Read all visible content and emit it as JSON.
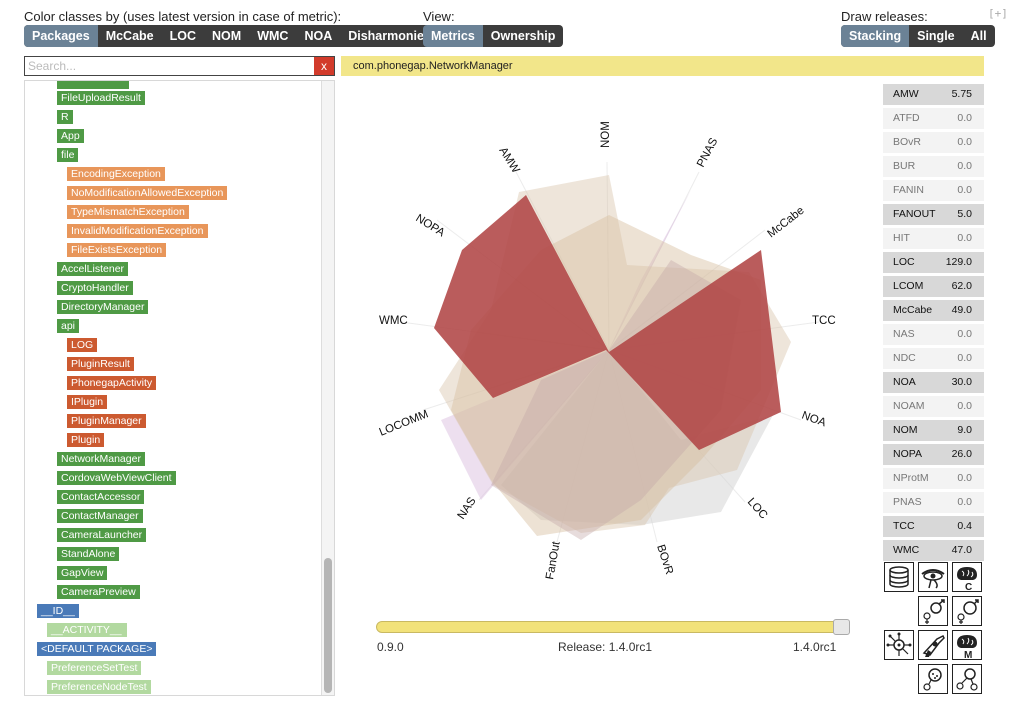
{
  "header": {
    "color_label": "Color classes by (uses latest version in case of metric):",
    "color_buttons": [
      "Packages",
      "McCabe",
      "LOC",
      "NOM",
      "WMC",
      "NOA",
      "Disharmonies"
    ],
    "view_label": "View:",
    "view_buttons": [
      "Metrics",
      "Ownership"
    ],
    "draw_label": "Draw releases:",
    "draw_buttons": [
      "Stacking",
      "Single",
      "All"
    ],
    "expand": "[+]"
  },
  "search": {
    "placeholder": "Search...",
    "clear": "x"
  },
  "tree": [
    {
      "label": "FileUploadResult",
      "color": "g"
    },
    {
      "label": "R",
      "color": "g"
    },
    {
      "label": "App",
      "color": "g"
    },
    {
      "label": "file",
      "color": "g"
    },
    {
      "label": "EncodingException",
      "color": "o"
    },
    {
      "label": "NoModificationAllowedException",
      "color": "o"
    },
    {
      "label": "TypeMismatchException",
      "color": "o"
    },
    {
      "label": "InvalidModificationException",
      "color": "o"
    },
    {
      "label": "FileExistsException",
      "color": "o"
    },
    {
      "label": "AccelListener",
      "color": "g"
    },
    {
      "label": "CryptoHandler",
      "color": "g"
    },
    {
      "label": "DirectoryManager",
      "color": "g"
    },
    {
      "label": "api",
      "color": "g"
    },
    {
      "label": "LOG",
      "color": "r"
    },
    {
      "label": "PluginResult",
      "color": "r"
    },
    {
      "label": "PhonegapActivity",
      "color": "r"
    },
    {
      "label": "IPlugin",
      "color": "r"
    },
    {
      "label": "PluginManager",
      "color": "r"
    },
    {
      "label": "Plugin",
      "color": "r"
    },
    {
      "label": "NetworkManager",
      "color": "g"
    },
    {
      "label": "CordovaWebViewClient",
      "color": "g"
    },
    {
      "label": "ContactAccessor",
      "color": "g"
    },
    {
      "label": "ContactManager",
      "color": "g"
    },
    {
      "label": "CameraLauncher",
      "color": "g"
    },
    {
      "label": "StandAlone",
      "color": "g"
    },
    {
      "label": "GapView",
      "color": "g"
    },
    {
      "label": "CameraPreview",
      "color": "g"
    },
    {
      "label": "__ID__",
      "color": "bl"
    },
    {
      "label": "__ACTIVITY__",
      "color": "lg"
    },
    {
      "label": "<DEFAULT PACKAGE>",
      "color": "bl"
    },
    {
      "label": "PreferenceSetTest",
      "color": "lg"
    },
    {
      "label": "PreferenceNodeTest",
      "color": "lg"
    }
  ],
  "selected_class": "com.phonegap.NetworkManager",
  "radar": {
    "axes": [
      "NOM",
      "PNAS",
      "McCabe",
      "TCC",
      "NOA",
      "LOC",
      "BOvR",
      "FanOut",
      "NAS",
      "LOCOMM",
      "WMC",
      "NOPA",
      "AMW"
    ],
    "colors": {
      "current": "#b54a4a",
      "stack1": "#d9c6ad",
      "stack2": "#c8b4b4",
      "stack3": "#dcdcdc",
      "stack4": "#dcc0e0"
    }
  },
  "release": {
    "start": "0.9.0",
    "current": "Release: 1.4.0rc1",
    "end": "1.4.0rc1",
    "position": 1.0
  },
  "metrics": [
    {
      "name": "AMW",
      "value": "5.75",
      "active": true
    },
    {
      "name": "ATFD",
      "value": "0.0",
      "active": false
    },
    {
      "name": "BOvR",
      "value": "0.0",
      "active": false
    },
    {
      "name": "BUR",
      "value": "0.0",
      "active": false
    },
    {
      "name": "FANIN",
      "value": "0.0",
      "active": false
    },
    {
      "name": "FANOUT",
      "value": "5.0",
      "active": true
    },
    {
      "name": "HIT",
      "value": "0.0",
      "active": false
    },
    {
      "name": "LOC",
      "value": "129.0",
      "active": true
    },
    {
      "name": "LCOM",
      "value": "62.0",
      "active": true
    },
    {
      "name": "McCabe",
      "value": "49.0",
      "active": true
    },
    {
      "name": "NAS",
      "value": "0.0",
      "active": false
    },
    {
      "name": "NDC",
      "value": "0.0",
      "active": false
    },
    {
      "name": "NOA",
      "value": "30.0",
      "active": true
    },
    {
      "name": "NOAM",
      "value": "0.0",
      "active": false
    },
    {
      "name": "NOM",
      "value": "9.0",
      "active": true
    },
    {
      "name": "NOPA",
      "value": "26.0",
      "active": true
    },
    {
      "name": "NProtM",
      "value": "0.0",
      "active": false
    },
    {
      "name": "PNAS",
      "value": "0.0",
      "active": false
    },
    {
      "name": "TCC",
      "value": "0.4",
      "active": true
    },
    {
      "name": "WMC",
      "value": "47.0",
      "active": true
    }
  ],
  "tools": [
    "database-icon",
    "eye-icon",
    "brain-c-icon",
    "female-male-icon",
    "female-male-outline-icon",
    "star-network-icon",
    "revolver-icon",
    "brain-m-icon",
    "dots-network-icon",
    "network-icon"
  ]
}
